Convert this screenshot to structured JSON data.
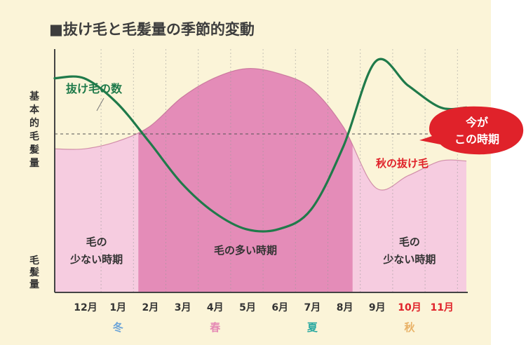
{
  "chart_data": {
    "type": "area",
    "title": "■抜け毛と毛髪量の季節的変動",
    "categories": [
      "12月",
      "1月",
      "2月",
      "3月",
      "4月",
      "5月",
      "6月",
      "7月",
      "8月",
      "9月",
      "10月",
      "11月"
    ],
    "highlight_categories": [
      "10月",
      "11月"
    ],
    "seasons": [
      {
        "label": "冬",
        "color": "#6aa3d8",
        "center": "1月"
      },
      {
        "label": "春",
        "color": "#e58ab5",
        "center": "4月"
      },
      {
        "label": "夏",
        "color": "#2aa9a1",
        "center": "7月"
      },
      {
        "label": "秋",
        "color": "#e9b267",
        "center": "10月"
      }
    ],
    "ylabel_top": "基本的毛髪量",
    "ylabel_bottom": "毛髪量",
    "series": [
      {
        "name": "抜け毛の数",
        "color": "#1f7a4a",
        "relative_values": [
          0.88,
          0.78,
          0.62,
          0.45,
          0.33,
          0.26,
          0.26,
          0.34,
          0.6,
          0.95,
          0.85,
          0.76
        ]
      },
      {
        "name": "毛髪量",
        "color": "#b55a86",
        "relative_values": [
          0.59,
          0.62,
          0.68,
          0.8,
          0.88,
          0.92,
          0.9,
          0.84,
          0.68,
          0.43,
          0.48,
          0.54
        ]
      }
    ],
    "annotations": {
      "fall_shedding": "秋の抜け毛",
      "bubble_line1": "今が",
      "bubble_line2": "この時期"
    },
    "regions": [
      {
        "label_line1": "毛の",
        "label_line2": "少ない時期",
        "from": "12月",
        "to": "2月"
      },
      {
        "label_line1": "毛の多い時期",
        "label_line2": "",
        "from": "2月",
        "to": "8月"
      },
      {
        "label_line1": "毛の",
        "label_line2": "少ない時期",
        "from": "9月",
        "to": "11月"
      }
    ],
    "colors": {
      "light_pink": "#f6cce0",
      "dark_pink": "#e48cb8",
      "shedding_line": "#1f7a4a",
      "bubble": "#e0222a",
      "highlight_month": "#e0222a"
    }
  }
}
